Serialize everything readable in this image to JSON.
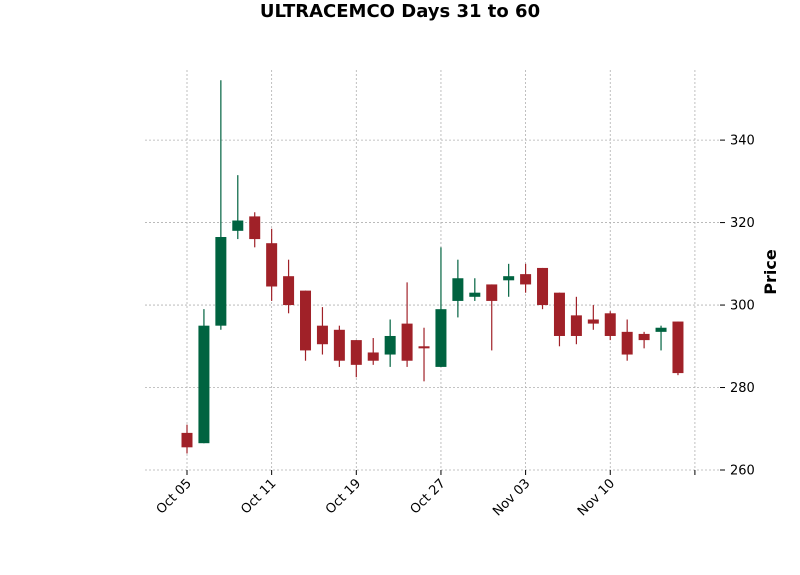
{
  "chart_data": {
    "type": "candlestick",
    "title": "ULTRACEMCO Days 31 to 60",
    "ylabel": "Price",
    "xlabel": "",
    "ylim": [
      260,
      357
    ],
    "yticks": [
      260,
      280,
      300,
      320,
      340
    ],
    "x_tick_labels": [
      "Oct 05",
      "Oct 11",
      "Oct 19",
      "Oct 27",
      "Nov 03",
      "Nov 10",
      ""
    ],
    "x_tick_index": [
      0,
      5,
      10,
      15,
      20,
      25,
      30
    ],
    "grid": true,
    "colors": {
      "up": "#006340",
      "down": "#a02128"
    },
    "candles": [
      {
        "i": 0,
        "o": 269.0,
        "h": 271.0,
        "l": 264.0,
        "c": 265.5
      },
      {
        "i": 1,
        "o": 266.5,
        "h": 299.0,
        "l": 266.5,
        "c": 295.0
      },
      {
        "i": 2,
        "o": 295.0,
        "h": 354.5,
        "l": 294.0,
        "c": 316.5
      },
      {
        "i": 3,
        "o": 318.0,
        "h": 331.5,
        "l": 316.0,
        "c": 320.5
      },
      {
        "i": 4,
        "o": 321.5,
        "h": 322.5,
        "l": 314.0,
        "c": 316.0
      },
      {
        "i": 5,
        "o": 315.0,
        "h": 318.5,
        "l": 301.0,
        "c": 304.5
      },
      {
        "i": 6,
        "o": 307.0,
        "h": 311.0,
        "l": 298.0,
        "c": 300.0
      },
      {
        "i": 7,
        "o": 303.5,
        "h": 303.5,
        "l": 286.5,
        "c": 289.0
      },
      {
        "i": 8,
        "o": 295.0,
        "h": 299.5,
        "l": 288.0,
        "c": 290.5
      },
      {
        "i": 9,
        "o": 294.0,
        "h": 295.0,
        "l": 285.0,
        "c": 286.5
      },
      {
        "i": 10,
        "o": 291.5,
        "h": 291.5,
        "l": 282.5,
        "c": 285.5
      },
      {
        "i": 11,
        "o": 288.5,
        "h": 292.0,
        "l": 285.5,
        "c": 286.5
      },
      {
        "i": 12,
        "o": 288.0,
        "h": 296.5,
        "l": 285.0,
        "c": 292.5
      },
      {
        "i": 13,
        "o": 295.5,
        "h": 305.5,
        "l": 285.0,
        "c": 286.5
      },
      {
        "i": 14,
        "o": 290.0,
        "h": 294.5,
        "l": 281.5,
        "c": 289.5
      },
      {
        "i": 15,
        "o": 285.0,
        "h": 314.0,
        "l": 285.0,
        "c": 299.0
      },
      {
        "i": 16,
        "o": 301.0,
        "h": 311.0,
        "l": 297.0,
        "c": 306.5
      },
      {
        "i": 17,
        "o": 302.0,
        "h": 306.5,
        "l": 301.0,
        "c": 303.0
      },
      {
        "i": 18,
        "o": 305.0,
        "h": 305.0,
        "l": 289.0,
        "c": 301.0
      },
      {
        "i": 19,
        "o": 306.0,
        "h": 310.0,
        "l": 302.0,
        "c": 307.0
      },
      {
        "i": 20,
        "o": 307.5,
        "h": 310.0,
        "l": 303.0,
        "c": 305.0
      },
      {
        "i": 21,
        "o": 309.0,
        "h": 309.0,
        "l": 299.0,
        "c": 300.0
      },
      {
        "i": 22,
        "o": 303.0,
        "h": 303.0,
        "l": 290.0,
        "c": 292.5
      },
      {
        "i": 23,
        "o": 297.5,
        "h": 302.0,
        "l": 290.5,
        "c": 292.5
      },
      {
        "i": 24,
        "o": 296.5,
        "h": 300.0,
        "l": 294.0,
        "c": 295.5
      },
      {
        "i": 25,
        "o": 298.0,
        "h": 298.5,
        "l": 291.5,
        "c": 292.5
      },
      {
        "i": 26,
        "o": 293.5,
        "h": 296.5,
        "l": 286.5,
        "c": 288.0
      },
      {
        "i": 27,
        "o": 293.0,
        "h": 293.5,
        "l": 289.5,
        "c": 291.5
      },
      {
        "i": 28,
        "o": 293.5,
        "h": 295.0,
        "l": 289.0,
        "c": 294.5
      },
      {
        "i": 29,
        "o": 296.0,
        "h": 296.0,
        "l": 283.0,
        "c": 283.5
      }
    ]
  }
}
